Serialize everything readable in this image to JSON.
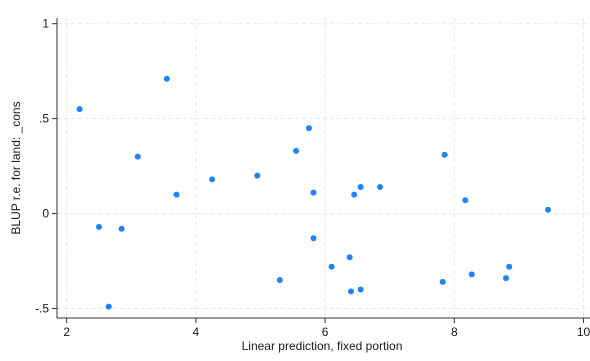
{
  "chart_data": {
    "type": "scatter",
    "xlabel": "Linear prediction, fixed portion",
    "ylabel": "BLUP r.e. for land: _cons",
    "xlim": [
      1.85,
      10.1
    ],
    "ylim": [
      -0.55,
      1.03
    ],
    "x_ticks": [
      2,
      4,
      6,
      8,
      10
    ],
    "x_tick_labels": [
      "2",
      "4",
      "6",
      "8",
      "10"
    ],
    "y_ticks": [
      -0.5,
      0,
      0.5,
      1
    ],
    "y_tick_labels": [
      "-.5",
      "0",
      ".5",
      "1"
    ],
    "grid": true,
    "marker_color": "#1a85ff",
    "points": [
      {
        "x": 2.2,
        "y": 0.55
      },
      {
        "x": 2.5,
        "y": -0.07
      },
      {
        "x": 2.65,
        "y": -0.49
      },
      {
        "x": 2.85,
        "y": -0.08
      },
      {
        "x": 3.1,
        "y": 0.3
      },
      {
        "x": 3.55,
        "y": 0.71
      },
      {
        "x": 3.7,
        "y": 0.1
      },
      {
        "x": 4.25,
        "y": 0.18
      },
      {
        "x": 4.95,
        "y": 0.2
      },
      {
        "x": 5.3,
        "y": -0.35
      },
      {
        "x": 5.55,
        "y": 0.33
      },
      {
        "x": 5.75,
        "y": 0.45
      },
      {
        "x": 5.82,
        "y": 0.11
      },
      {
        "x": 5.82,
        "y": -0.13
      },
      {
        "x": 6.1,
        "y": -0.28
      },
      {
        "x": 6.38,
        "y": -0.23
      },
      {
        "x": 6.4,
        "y": -0.41
      },
      {
        "x": 6.45,
        "y": 0.1
      },
      {
        "x": 6.55,
        "y": -0.4
      },
      {
        "x": 6.55,
        "y": 0.14
      },
      {
        "x": 6.85,
        "y": 0.14
      },
      {
        "x": 7.82,
        "y": -0.36
      },
      {
        "x": 7.85,
        "y": 0.31
      },
      {
        "x": 8.17,
        "y": 0.07
      },
      {
        "x": 8.27,
        "y": -0.32
      },
      {
        "x": 8.8,
        "y": -0.34
      },
      {
        "x": 8.85,
        "y": -0.28
      },
      {
        "x": 9.45,
        "y": 0.02
      }
    ]
  }
}
